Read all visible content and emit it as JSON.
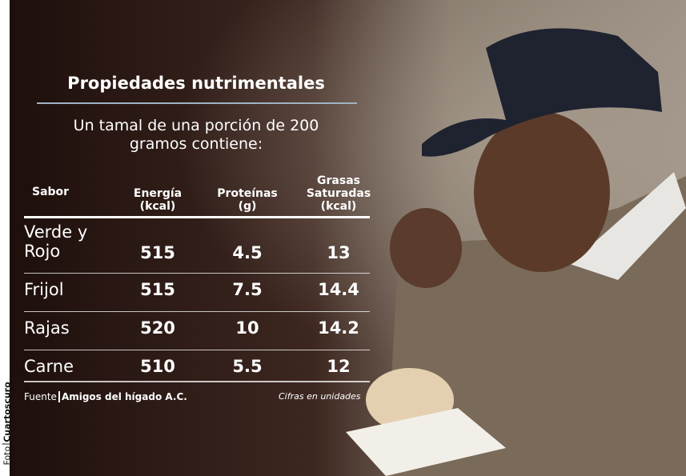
{
  "header": {
    "title": "Propiedades nutrimentales",
    "subtitle": "Un tamal de una porción de 200 gramos contiene:"
  },
  "table": {
    "columns": [
      "Sabor",
      "Energía (kcal)",
      "Proteínas (g)",
      "Grasas Saturadas (kcal)"
    ],
    "rows": [
      [
        "Verde y Rojo",
        515,
        4.5,
        13
      ],
      [
        "Frijol",
        515,
        7.5,
        14.4
      ],
      [
        "Rajas",
        520,
        10,
        14.2
      ],
      [
        "Carne",
        510,
        5.5,
        12
      ]
    ]
  },
  "footer": {
    "source_label": "Fuente",
    "source": "Amigos del hígado A.C.",
    "note": "Cifras en unidades"
  },
  "credit": {
    "label": "Foto",
    "name": "Cuartoscuro"
  }
}
